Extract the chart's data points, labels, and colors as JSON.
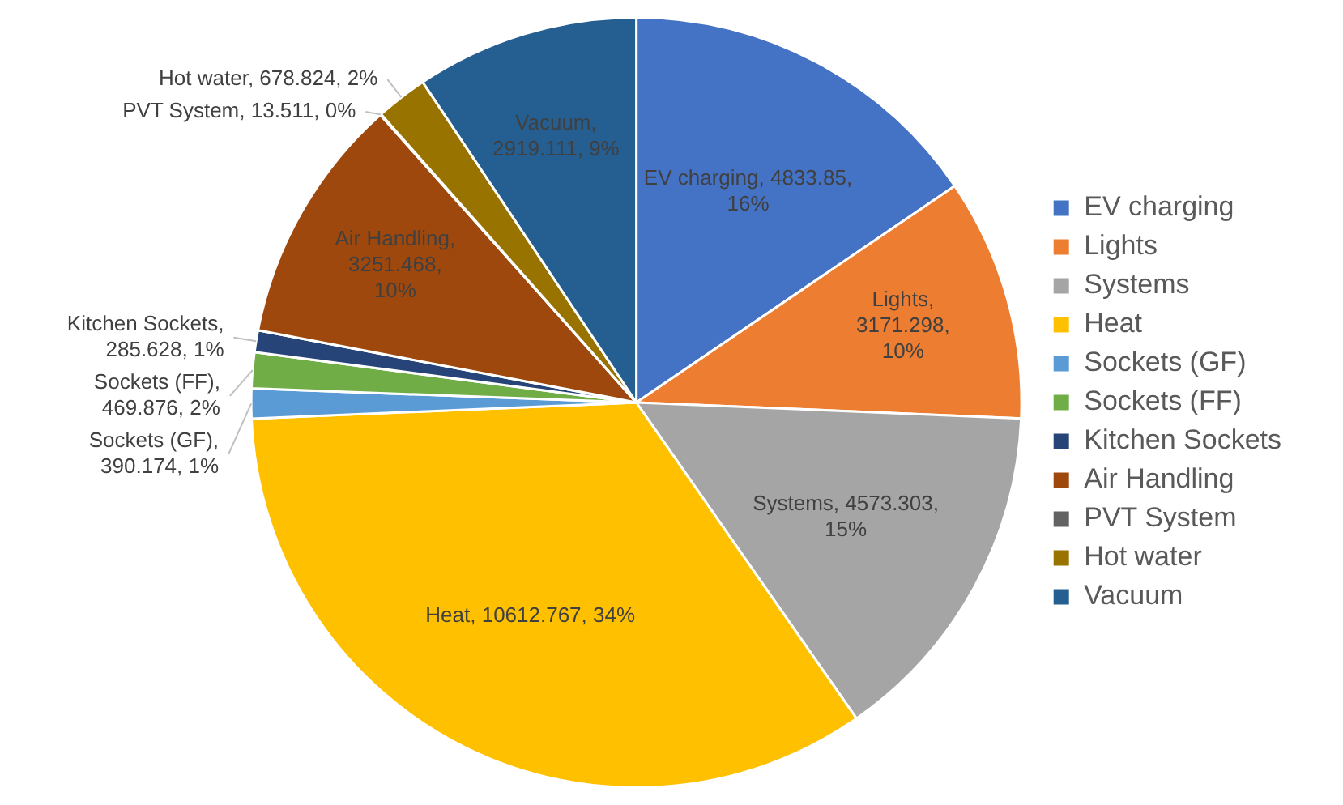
{
  "chart_data": {
    "type": "pie",
    "categories": [
      "EV charging",
      "Lights",
      "Systems",
      "Heat",
      "Sockets (GF)",
      "Sockets (FF)",
      "Kitchen Sockets",
      "Air Handling",
      "PVT System",
      "Hot water",
      "Vacuum"
    ],
    "values": [
      4833.85,
      3171.298,
      4573.303,
      10612.767,
      390.174,
      469.876,
      285.628,
      3251.468,
      13.511,
      678.824,
      2919.111
    ],
    "colors": [
      "#4472c4",
      "#ed7d31",
      "#a5a5a5",
      "#ffc000",
      "#5b9bd5",
      "#70ad47",
      "#264478",
      "#9e480e",
      "#636363",
      "#997300",
      "#255e91"
    ],
    "value_labels": [
      "EV charging, 4833.85, 16%",
      "Lights, 3171.298, 10%",
      "Systems, 4573.303, 15%",
      "Heat, 10612.767, 34%",
      "Sockets (GF), 390.174, 1%",
      "Sockets (FF), 469.876, 2%",
      "Kitchen Sockets, 285.628, 1%",
      "Air Handling, 3251.468, 10%",
      "PVT System, 13.511, 0%",
      "Hot water, 678.824, 2%",
      "Vacuum, 2919.111, 9%"
    ],
    "legend": "right"
  }
}
